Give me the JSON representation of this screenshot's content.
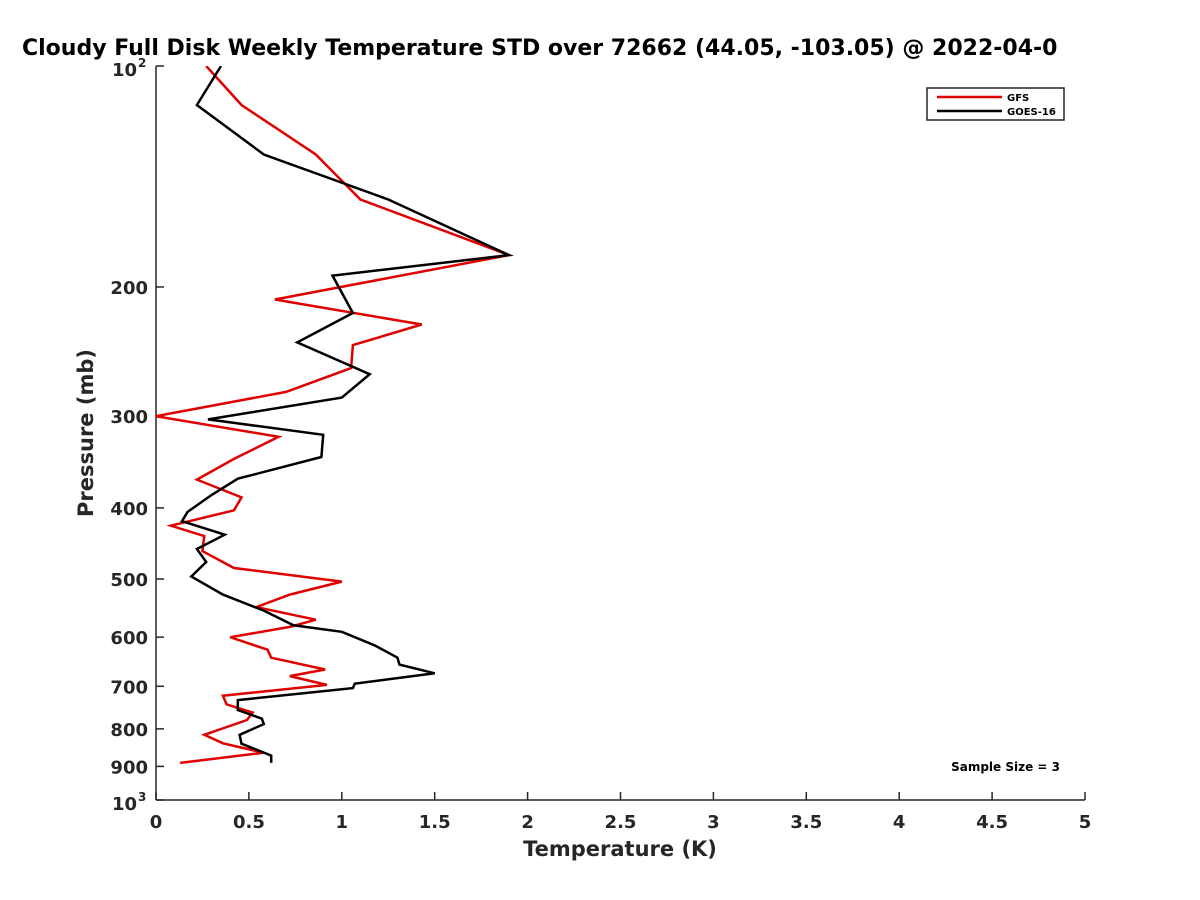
{
  "chart_data": {
    "type": "line",
    "title": "Cloudy Full Disk Weekly Temperature STD over 72662 (44.05, -103.05) @ 2022-04-0",
    "xlabel": "Temperature (K)",
    "ylabel": "Pressure (mb)",
    "xlim": [
      0,
      5
    ],
    "ylim": [
      100,
      1000
    ],
    "y_scale": "log",
    "y_reversed": true,
    "grid": false,
    "legend_position": "top-right",
    "x_ticks": [
      0,
      0.5,
      1,
      1.5,
      2,
      2.5,
      3,
      3.5,
      4,
      4.5,
      5
    ],
    "x_tick_labels": [
      "0",
      "0.5",
      "1",
      "1.5",
      "2",
      "2.5",
      "3",
      "3.5",
      "4",
      "4.5",
      "5"
    ],
    "y_ticks": [
      {
        "value": 100,
        "base": "10",
        "exp": "2"
      },
      {
        "value": 200,
        "label": "200"
      },
      {
        "value": 300,
        "label": "300"
      },
      {
        "value": 400,
        "label": "400"
      },
      {
        "value": 500,
        "label": "500"
      },
      {
        "value": 600,
        "label": "600"
      },
      {
        "value": 700,
        "label": "700"
      },
      {
        "value": 800,
        "label": "800"
      },
      {
        "value": 900,
        "label": "900"
      },
      {
        "value": 1000,
        "base": "10",
        "exp": "3"
      }
    ],
    "annotation": "Sample Size = 3",
    "series": [
      {
        "name": "GFS",
        "color": "#e00000",
        "x": [
          0.27,
          0.46,
          0.86,
          1.1,
          1.9,
          0.64,
          1.43,
          1.06,
          1.05,
          0.7,
          0.0,
          0.66,
          0.42,
          0.22,
          0.46,
          0.42,
          0.08,
          0.26,
          0.25,
          0.42,
          1.0,
          0.72,
          0.54,
          0.86,
          0.72,
          0.4,
          0.6,
          0.62,
          0.91,
          0.72,
          0.92,
          0.36,
          0.38,
          0.52,
          0.49,
          0.26,
          0.36,
          0.58,
          0.13
        ],
        "y": [
          100,
          113,
          132,
          152,
          181,
          208,
          225,
          240,
          258,
          278,
          300,
          320,
          343,
          366,
          387,
          403,
          423,
          437,
          458,
          483,
          504,
          525,
          546,
          568,
          581,
          600,
          624,
          640,
          664,
          678,
          697,
          721,
          741,
          760,
          778,
          815,
          837,
          862,
          890
        ]
      },
      {
        "name": "GOES-16",
        "color": "#000000",
        "x": [
          0.35,
          0.22,
          0.58,
          1.25,
          1.9,
          0.95,
          1.06,
          0.76,
          1.15,
          1.0,
          0.28,
          0.9,
          0.89,
          0.44,
          0.3,
          0.17,
          0.14,
          0.37,
          0.22,
          0.27,
          0.19,
          0.36,
          0.58,
          0.74,
          1.0,
          1.18,
          1.3,
          1.31,
          1.5,
          1.07,
          1.06,
          0.44,
          0.44,
          0.57,
          0.58,
          0.45,
          0.46,
          0.62,
          0.62
        ],
        "y": [
          100,
          113,
          132,
          152,
          181,
          193,
          217,
          238,
          263,
          283,
          303,
          318,
          341,
          365,
          384,
          405,
          417,
          435,
          455,
          474,
          496,
          525,
          552,
          578,
          590,
          616,
          640,
          654,
          672,
          694,
          704,
          731,
          754,
          775,
          788,
          815,
          838,
          870,
          890
        ]
      }
    ]
  }
}
